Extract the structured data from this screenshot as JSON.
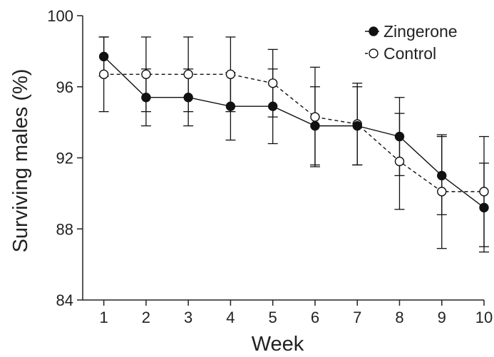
{
  "chart_data": {
    "type": "line",
    "title": "",
    "xlabel": "Week",
    "ylabel": "Surviving males (%)",
    "x": [
      1,
      2,
      3,
      4,
      5,
      6,
      7,
      8,
      9,
      10
    ],
    "xlim": [
      0.5,
      10
    ],
    "ylim": [
      84,
      100
    ],
    "xticks": [
      1,
      2,
      3,
      4,
      5,
      6,
      7,
      8,
      9,
      10
    ],
    "yticks": [
      84,
      88,
      92,
      96,
      100
    ],
    "grid": false,
    "legend_position": "top-right",
    "series": [
      {
        "name": "Zingerone",
        "marker": "filled-circle",
        "line_style": "solid",
        "color": "#111111",
        "values": [
          97.7,
          95.4,
          95.4,
          94.9,
          94.9,
          93.8,
          93.8,
          93.2,
          91.0,
          89.2
        ],
        "error": [
          1.1,
          1.6,
          1.6,
          1.9,
          2.1,
          2.2,
          2.2,
          2.2,
          2.2,
          2.5
        ]
      },
      {
        "name": "Control",
        "marker": "open-circle",
        "line_style": "dashed",
        "color": "#111111",
        "values": [
          96.7,
          96.7,
          96.7,
          96.7,
          96.2,
          94.3,
          93.9,
          91.8,
          90.1,
          90.1
        ],
        "error": [
          2.1,
          2.1,
          2.1,
          2.1,
          1.9,
          2.8,
          2.3,
          2.7,
          3.2,
          3.1
        ]
      }
    ]
  }
}
